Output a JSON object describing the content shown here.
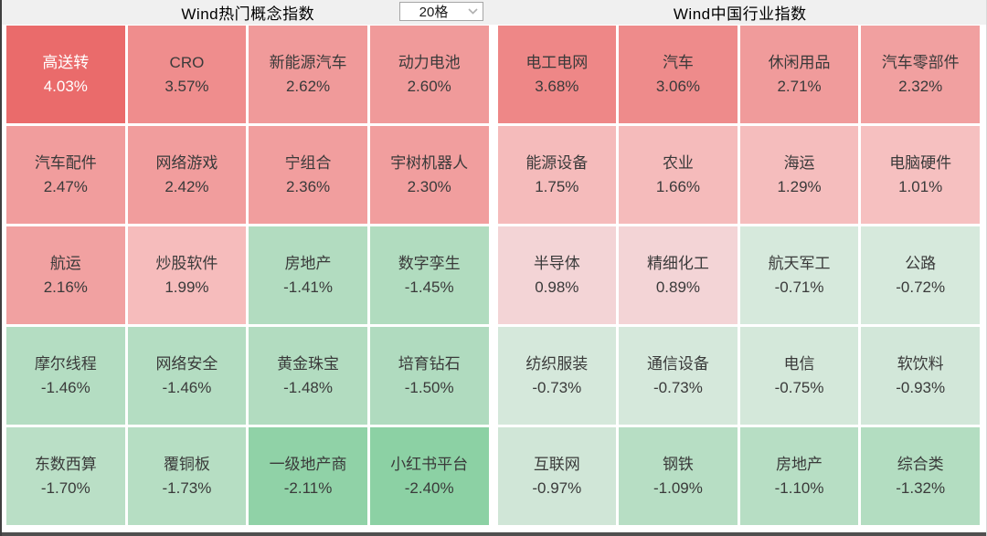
{
  "page": {
    "header_bg": "#f0f0f0",
    "frame_color": "#4f4f4f",
    "tile_text_color": "#3a3a3a"
  },
  "left_panel": {
    "title": "Wind热门概念指数",
    "grid_selector": {
      "value": "20格"
    },
    "tiles": [
      {
        "name": "高送转",
        "value": "4.03%",
        "bg": "#ea6b6b",
        "fg": "#ffffff"
      },
      {
        "name": "CRO",
        "value": "3.57%",
        "bg": "#ef8d8d",
        "fg": "#3a3a3a"
      },
      {
        "name": "新能源汽车",
        "value": "2.62%",
        "bg": "#f09a9a",
        "fg": "#3a3a3a"
      },
      {
        "name": "动力电池",
        "value": "2.60%",
        "bg": "#f09a9a",
        "fg": "#3a3a3a"
      },
      {
        "name": "汽车配件",
        "value": "2.47%",
        "bg": "#f19d9d",
        "fg": "#3a3a3a"
      },
      {
        "name": "网络游戏",
        "value": "2.42%",
        "bg": "#f19d9d",
        "fg": "#3a3a3a"
      },
      {
        "name": "宁组合",
        "value": "2.36%",
        "bg": "#f19e9e",
        "fg": "#3a3a3a"
      },
      {
        "name": "宇树机器人",
        "value": "2.30%",
        "bg": "#f19e9e",
        "fg": "#3a3a3a"
      },
      {
        "name": "航运",
        "value": "2.16%",
        "bg": "#f1a1a1",
        "fg": "#3a3a3a"
      },
      {
        "name": "炒股软件",
        "value": "1.99%",
        "bg": "#f6bcbc",
        "fg": "#3a3a3a"
      },
      {
        "name": "房地产",
        "value": "-1.41%",
        "bg": "#b2dcc0",
        "fg": "#3a3a3a"
      },
      {
        "name": "数字孪生",
        "value": "-1.45%",
        "bg": "#b1dcbf",
        "fg": "#3a3a3a"
      },
      {
        "name": "摩尔线程",
        "value": "-1.46%",
        "bg": "#b4ddc2",
        "fg": "#3a3a3a"
      },
      {
        "name": "网络安全",
        "value": "-1.46%",
        "bg": "#b4ddc2",
        "fg": "#3a3a3a"
      },
      {
        "name": "黄金珠宝",
        "value": "-1.48%",
        "bg": "#b2dcc0",
        "fg": "#3a3a3a"
      },
      {
        "name": "培育钻石",
        "value": "-1.50%",
        "bg": "#b0dbbf",
        "fg": "#3a3a3a"
      },
      {
        "name": "东数西算",
        "value": "-1.70%",
        "bg": "#badfc6",
        "fg": "#3a3a3a"
      },
      {
        "name": "覆铜板",
        "value": "-1.73%",
        "bg": "#b6dec3",
        "fg": "#3a3a3a"
      },
      {
        "name": "一级地产商",
        "value": "-2.11%",
        "bg": "#90d2a7",
        "fg": "#3a3a3a"
      },
      {
        "name": "小红书平台",
        "value": "-2.40%",
        "bg": "#8cd1a4",
        "fg": "#3a3a3a"
      }
    ]
  },
  "right_panel": {
    "title": "Wind中国行业指数",
    "tiles": [
      {
        "name": "电工电网",
        "value": "3.68%",
        "bg": "#ee8787",
        "fg": "#3a3a3a"
      },
      {
        "name": "汽车",
        "value": "3.06%",
        "bg": "#ee8b8b",
        "fg": "#3a3a3a"
      },
      {
        "name": "休闲用品",
        "value": "2.71%",
        "bg": "#f09b9b",
        "fg": "#3a3a3a"
      },
      {
        "name": "汽车零部件",
        "value": "2.32%",
        "bg": "#f1a0a0",
        "fg": "#3a3a3a"
      },
      {
        "name": "能源设备",
        "value": "1.75%",
        "bg": "#f5bbbb",
        "fg": "#3a3a3a"
      },
      {
        "name": "农业",
        "value": "1.66%",
        "bg": "#f5bbbb",
        "fg": "#3a3a3a"
      },
      {
        "name": "海运",
        "value": "1.29%",
        "bg": "#f5bdbd",
        "fg": "#3a3a3a"
      },
      {
        "name": "电脑硬件",
        "value": "1.01%",
        "bg": "#f6c0c0",
        "fg": "#3a3a3a"
      },
      {
        "name": "半导体",
        "value": "0.98%",
        "bg": "#f3d4d6",
        "fg": "#3a3a3a"
      },
      {
        "name": "精细化工",
        "value": "0.89%",
        "bg": "#f3d4d6",
        "fg": "#3a3a3a"
      },
      {
        "name": "航天军工",
        "value": "-0.71%",
        "bg": "#d6e9dc",
        "fg": "#3a3a3a"
      },
      {
        "name": "公路",
        "value": "-0.72%",
        "bg": "#d6e9dc",
        "fg": "#3a3a3a"
      },
      {
        "name": "纺织服装",
        "value": "-0.73%",
        "bg": "#d5e8db",
        "fg": "#3a3a3a"
      },
      {
        "name": "通信设备",
        "value": "-0.73%",
        "bg": "#d5e8db",
        "fg": "#3a3a3a"
      },
      {
        "name": "电信",
        "value": "-0.75%",
        "bg": "#d4e8da",
        "fg": "#3a3a3a"
      },
      {
        "name": "软饮料",
        "value": "-0.93%",
        "bg": "#d2e7d9",
        "fg": "#3a3a3a"
      },
      {
        "name": "互联网",
        "value": "-0.97%",
        "bg": "#d0e6d7",
        "fg": "#3a3a3a"
      },
      {
        "name": "钢铁",
        "value": "-1.09%",
        "bg": "#b7dec4",
        "fg": "#3a3a3a"
      },
      {
        "name": "房地产",
        "value": "-1.10%",
        "bg": "#b7dec4",
        "fg": "#3a3a3a"
      },
      {
        "name": "综合类",
        "value": "-1.32%",
        "bg": "#b3ddc1",
        "fg": "#3a3a3a"
      }
    ]
  },
  "chart_data": [
    {
      "type": "heatmap",
      "title": "Wind热门概念指数",
      "layout": "4 columns x 5 rows, ranked descending by daily % change",
      "legend_position": "none",
      "categories": [
        "高送转",
        "CRO",
        "新能源汽车",
        "动力电池",
        "汽车配件",
        "网络游戏",
        "宁组合",
        "宇树机器人",
        "航运",
        "炒股软件",
        "房地产",
        "数字孪生",
        "摩尔线程",
        "网络安全",
        "黄金珠宝",
        "培育钻石",
        "东数西算",
        "覆铜板",
        "一级地产商",
        "小红书平台"
      ],
      "values": [
        4.03,
        3.57,
        2.62,
        2.6,
        2.47,
        2.42,
        2.36,
        2.3,
        2.16,
        1.99,
        -1.41,
        -1.45,
        -1.46,
        -1.46,
        -1.48,
        -1.5,
        -1.7,
        -1.73,
        -2.11,
        -2.4
      ],
      "value_unit": "%",
      "color_rule": "red shades = positive change, green shades = negative change; intensity scales with magnitude"
    },
    {
      "type": "heatmap",
      "title": "Wind中国行业指数",
      "layout": "4 columns x 5 rows, ranked descending by daily % change",
      "legend_position": "none",
      "categories": [
        "电工电网",
        "汽车",
        "休闲用品",
        "汽车零部件",
        "能源设备",
        "农业",
        "海运",
        "电脑硬件",
        "半导体",
        "精细化工",
        "航天军工",
        "公路",
        "纺织服装",
        "通信设备",
        "电信",
        "软饮料",
        "互联网",
        "钢铁",
        "房地产",
        "综合类"
      ],
      "values": [
        3.68,
        3.06,
        2.71,
        2.32,
        1.75,
        1.66,
        1.29,
        1.01,
        0.98,
        0.89,
        -0.71,
        -0.72,
        -0.73,
        -0.73,
        -0.75,
        -0.93,
        -0.97,
        -1.09,
        -1.1,
        -1.32
      ],
      "value_unit": "%",
      "color_rule": "red shades = positive change, green shades = negative change; intensity scales with magnitude"
    }
  ]
}
